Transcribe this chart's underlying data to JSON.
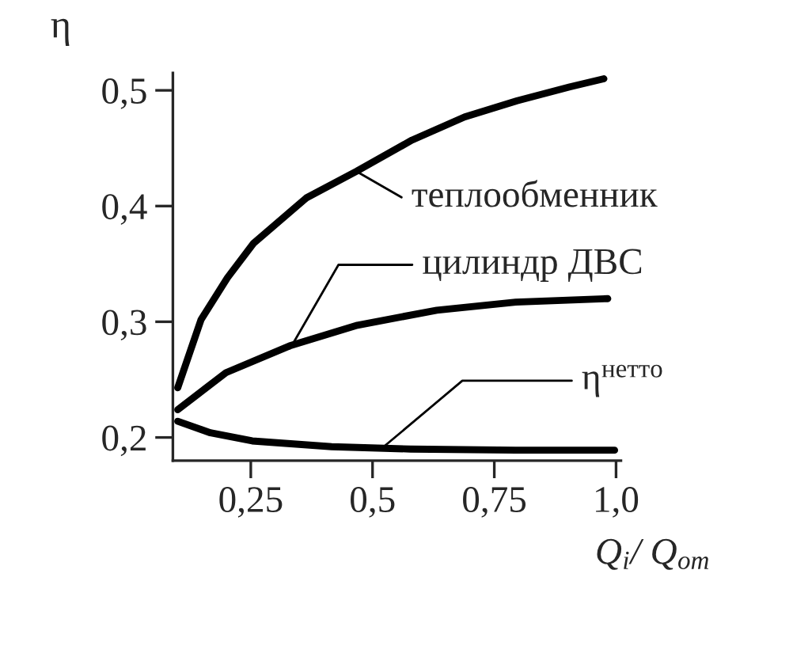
{
  "chart_data": {
    "type": "line",
    "xlabel": "Q$_{i}$/ Q$_{от}$",
    "ylabel": "η",
    "series": [
      {
        "color": "#000000",
        "x": [
          0.1,
          0.148,
          0.202,
          0.256,
          0.364,
          0.467,
          0.581,
          0.689,
          0.797,
          0.905,
          0.975
        ],
        "values": [
          0.243,
          0.302,
          0.338,
          0.368,
          0.407,
          0.43,
          0.457,
          0.477,
          0.491,
          0.503,
          0.51
        ]
      },
      {
        "color": "#000000",
        "x": [
          0.1,
          0.199,
          0.329,
          0.469,
          0.632,
          0.794,
          0.983
        ],
        "values": [
          0.224,
          0.256,
          0.279,
          0.297,
          0.31,
          0.317,
          0.32
        ]
      },
      {
        "color": "#000000",
        "x": [
          0.1,
          0.167,
          0.253,
          0.416,
          0.578,
          0.794,
          0.997
        ],
        "values": [
          0.214,
          0.204,
          0.197,
          0.192,
          0.19,
          0.189,
          0.189
        ]
      }
    ],
    "annotations": [
      {
        "text": "теплообменник",
        "x": 0.467,
        "y": 0.43
      },
      {
        "text": "цилиндр ДВС",
        "x": 0.331,
        "y": 0.277
      },
      {
        "text": "η$^{нетто}$",
        "x": 0.523,
        "y": 0.192
      }
    ],
    "xlim": [
      0.09,
      1.01
    ],
    "ylim": [
      0.18,
      0.515
    ],
    "xticks": [
      {
        "value": 0.25,
        "label": "0,25"
      },
      {
        "value": 0.5,
        "label": "0,5"
      },
      {
        "value": 0.75,
        "label": "0,75"
      },
      {
        "value": 1.0,
        "label": "1,0"
      }
    ],
    "yticks": [
      {
        "value": 0.2,
        "label": "0,2"
      },
      {
        "value": 0.3,
        "label": "0,3"
      },
      {
        "value": 0.4,
        "label": "0,4"
      },
      {
        "value": 0.5,
        "label": "0,5"
      }
    ],
    "grid": false,
    "legend": false,
    "line_style": "solid",
    "marker": "none"
  }
}
